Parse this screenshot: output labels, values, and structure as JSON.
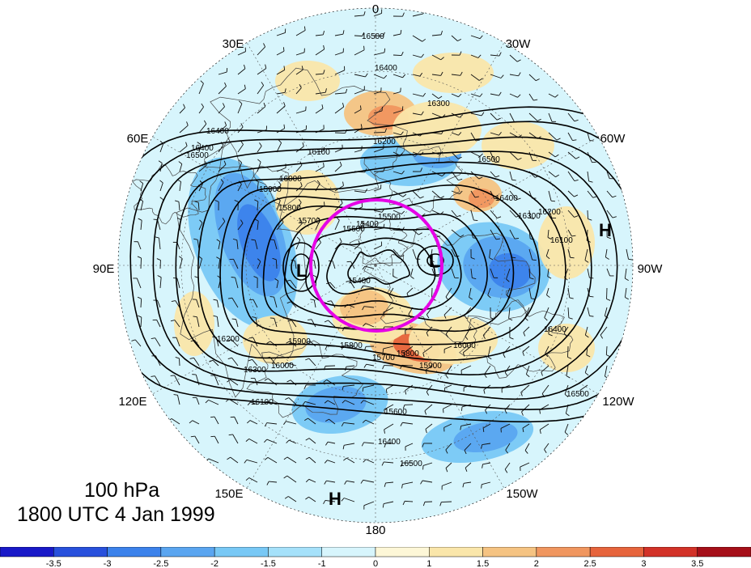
{
  "title": {
    "level": "100 hPa",
    "time": "1800 UTC 4 Jan 1999"
  },
  "longitude_labels": [
    "0",
    "30W",
    "60W",
    "90W",
    "120W",
    "150W",
    "180",
    "150E",
    "120E",
    "90E",
    "60E",
    "30E"
  ],
  "contours": {
    "units_label": "",
    "values": [
      15400,
      15500,
      15600,
      15700,
      15800,
      15900,
      16000,
      16100,
      16200,
      16300,
      16400,
      16500
    ],
    "visible_labels": [
      "16500",
      "16400",
      "16400",
      "16300",
      "16200",
      "16100",
      "16000",
      "15900",
      "15800",
      "15700",
      "15600",
      "15500",
      "15400",
      "16500",
      "16400",
      "16300",
      "16200",
      "16100",
      "16000",
      "15900",
      "15800",
      "15700",
      "15600",
      "15400",
      "16500",
      "16400",
      "16300",
      "16200",
      "16100",
      "16000",
      "15900",
      "15800",
      "16400",
      "16500",
      "16400",
      "16500"
    ]
  },
  "pressure_centers": [
    {
      "label": "L",
      "region": "Eurasian vortex center"
    },
    {
      "label": "L",
      "region": "Canadian vortex center"
    },
    {
      "label": "H",
      "region": "North Atlantic / eastern Pacific high"
    },
    {
      "label": "H",
      "region": "North Pacific high near 180"
    }
  ],
  "highlight_circle": {
    "color": "#e600e6"
  },
  "colorbar": {
    "ticks": [
      "-3.5",
      "-3",
      "-2.5",
      "-2",
      "-1.5",
      "-1",
      "0",
      "1",
      "1.5",
      "2",
      "2.5",
      "3",
      "3.5"
    ],
    "colors": [
      "#1919c8",
      "#2850dc",
      "#3c82eb",
      "#5aa5f0",
      "#78c8f5",
      "#a5e1fa",
      "#d7f5fc",
      "#fdf7d7",
      "#fae6aa",
      "#f5c382",
      "#f0965f",
      "#e6643c",
      "#d23228",
      "#a50f19"
    ]
  },
  "colors": {
    "contour": "#000000",
    "coast": "#444444",
    "graticule": "#555555",
    "wind_barb": "#111111"
  }
}
